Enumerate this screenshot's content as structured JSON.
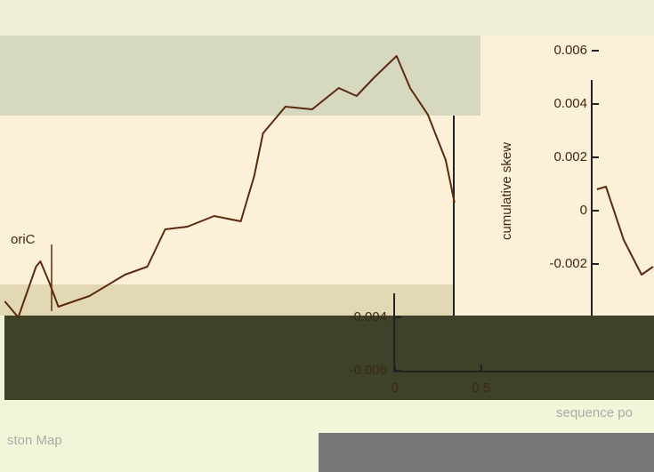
{
  "chart_data": {
    "type": "line",
    "y_label": "cumulative skew",
    "x_label": "sequence po",
    "annotations": [
      "oriC",
      "ston Map"
    ],
    "x": [
      -2.258,
      -2.18,
      -2.077,
      -2.052,
      -2.0,
      -1.948,
      -1.768,
      -1.562,
      -1.433,
      -1.33,
      -1.201,
      -1.046,
      -0.892,
      -0.814,
      -0.763,
      -0.634,
      -0.479,
      -0.325,
      -0.222,
      -0.119,
      0.01,
      0.088,
      0.191,
      0.294,
      0.345,
      null,
      1.17,
      1.222,
      1.325,
      1.428,
      1.495
    ],
    "series": [
      {
        "color": "#5a2a10",
        "values": [
          -0.0034,
          -0.004,
          -0.0021,
          -0.0019,
          -0.0027,
          -0.0036,
          -0.0032,
          -0.0024,
          -0.0021,
          -0.0007,
          -0.0006,
          -0.0002,
          -0.0004,
          0.0013,
          0.0029,
          0.0039,
          0.0038,
          0.0046,
          0.0043,
          0.005,
          0.0058,
          0.0046,
          0.0036,
          0.0019,
          0.0003,
          null,
          0.0008,
          0.0009,
          -0.0011,
          -0.0024,
          -0.0021
        ]
      }
    ],
    "xlim": [
      -2.26,
      1.5
    ],
    "xticks": [
      0,
      0.5
    ],
    "ylim": [
      -0.0098,
      0.0079
    ],
    "yticks": [
      -0.006,
      -0.004,
      -0.002,
      0,
      0.002,
      0.004,
      0.006
    ]
  }
}
